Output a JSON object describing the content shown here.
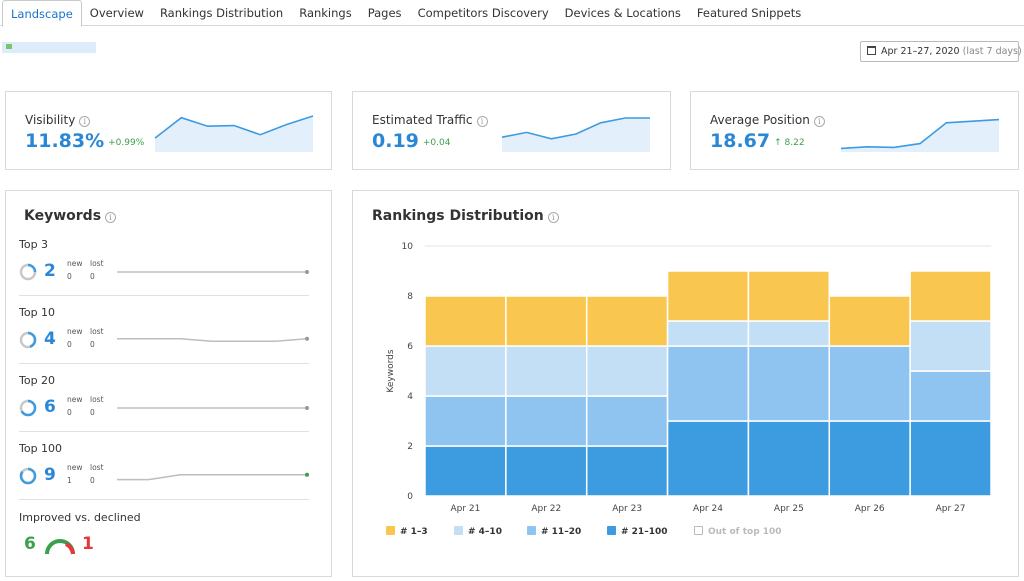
{
  "tabs": [
    {
      "label": "Landscape",
      "active": true
    },
    {
      "label": "Overview"
    },
    {
      "label": "Rankings Distribution"
    },
    {
      "label": "Rankings"
    },
    {
      "label": "Pages"
    },
    {
      "label": "Competitors Discovery"
    },
    {
      "label": "Devices & Locations"
    },
    {
      "label": "Featured Snippets"
    }
  ],
  "date_range": {
    "label": "Apr 21–27, 2020",
    "suffix": "(last 7 days)"
  },
  "metrics": {
    "visibility": {
      "label": "Visibility",
      "value": "11.83%",
      "delta": "+0.99%",
      "trend": [
        0.35,
        0.95,
        0.7,
        0.72,
        0.45,
        0.75,
        1.0
      ]
    },
    "traffic": {
      "label": "Estimated Traffic",
      "value": "0.19",
      "delta": "+0.04",
      "trend": [
        0.4,
        0.55,
        0.35,
        0.5,
        0.85,
        1.0,
        1.0
      ]
    },
    "position": {
      "label": "Average Position",
      "value": "18.67",
      "delta": "↑ 8.22",
      "trend": [
        0.05,
        0.1,
        0.08,
        0.2,
        0.85,
        0.9,
        0.95
      ]
    }
  },
  "keywords": {
    "title": "Keywords",
    "new_label": "new",
    "lost_label": "lost",
    "groups": [
      {
        "title": "Top 3",
        "value": "2",
        "new": "0",
        "lost": "0",
        "fill": 0.25,
        "trend": [
          0.5,
          0.5,
          0.5,
          0.5,
          0.5,
          0.5,
          0.5
        ],
        "dot": "#999999"
      },
      {
        "title": "Top 10",
        "value": "4",
        "new": "0",
        "lost": "0",
        "fill": 0.45,
        "trend": [
          0.6,
          0.6,
          0.6,
          0.4,
          0.4,
          0.4,
          0.6
        ],
        "dot": "#999999"
      },
      {
        "title": "Top 20",
        "value": "6",
        "new": "0",
        "lost": "0",
        "fill": 0.67,
        "trend": [
          0.5,
          0.5,
          0.5,
          0.5,
          0.5,
          0.5,
          0.5
        ],
        "dot": "#999999"
      },
      {
        "title": "Top 100",
        "value": "9",
        "new": "1",
        "lost": "0",
        "fill": 0.85,
        "trend": [
          0.2,
          0.2,
          0.6,
          0.6,
          0.6,
          0.6,
          0.6
        ],
        "dot": "#3aa04b"
      }
    ],
    "improved_title": "Improved vs. declined",
    "improved": "6",
    "declined": "1"
  },
  "rankings": {
    "title": "Rankings Distribution"
  },
  "chart_data": {
    "type": "bar",
    "stacked": true,
    "ylabel": "Keywords",
    "xlabel": "",
    "ylim": [
      0,
      10
    ],
    "yticks": [
      0,
      2,
      4,
      6,
      8,
      10
    ],
    "grid": true,
    "categories": [
      "Apr 21",
      "Apr 22",
      "Apr 23",
      "Apr 24",
      "Apr 25",
      "Apr 26",
      "Apr 27"
    ],
    "series": [
      {
        "name": "# 21–100",
        "color": "#3d9be0",
        "values": [
          2,
          2,
          2,
          3,
          3,
          3,
          3
        ]
      },
      {
        "name": "# 11–20",
        "color": "#8ec4ef",
        "values": [
          2,
          2,
          2,
          3,
          3,
          3,
          2
        ]
      },
      {
        "name": "# 4–10",
        "color": "#c2dff6",
        "values": [
          2,
          2,
          2,
          1,
          1,
          0,
          2
        ]
      },
      {
        "name": "# 1–3",
        "color": "#f9c74f",
        "values": [
          2,
          2,
          2,
          2,
          2,
          2,
          2
        ]
      }
    ],
    "extra_legend": {
      "name": "Out of top 100",
      "checked": false
    }
  }
}
